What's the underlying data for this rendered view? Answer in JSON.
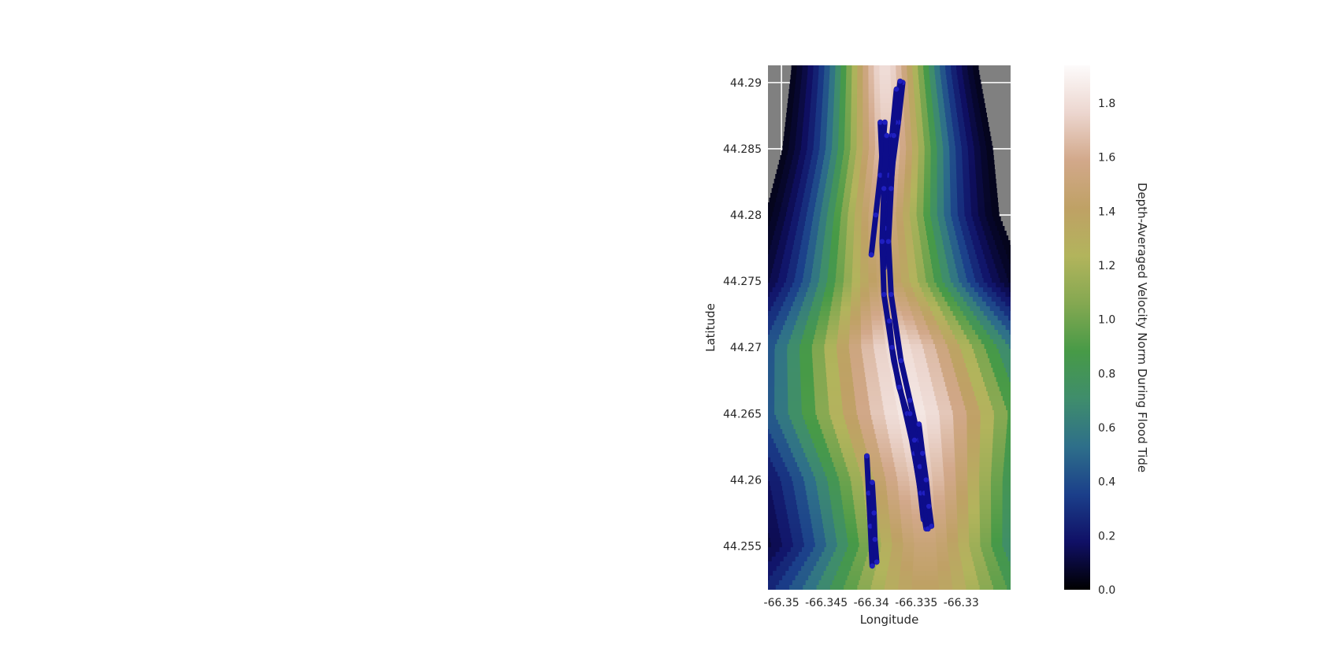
{
  "chart_data": {
    "type": "heatmap",
    "title": "",
    "xlabel": "Longitude",
    "ylabel": "Latitude",
    "xlim": [
      -66.3515,
      -66.3245
    ],
    "ylim": [
      44.2517,
      44.2913
    ],
    "x_ticks": [
      -66.35,
      -66.345,
      -66.34,
      -66.335,
      -66.33
    ],
    "x_tick_labels": [
      "-66.35",
      "-66.345",
      "-66.34",
      "-66.335",
      "-66.33"
    ],
    "y_ticks": [
      44.255,
      44.26,
      44.265,
      44.27,
      44.275,
      44.28,
      44.285,
      44.29
    ],
    "y_tick_labels": [
      "44.255",
      "44.26",
      "44.265",
      "44.27",
      "44.275",
      "44.28",
      "44.285",
      "44.29"
    ],
    "grid": true,
    "background_color": "#808080",
    "grid_color": "#ffffff",
    "colormap": "gist_earth",
    "colorbar": {
      "label": "Depth-Averaged Velocity Norm During Flood Tide",
      "vmin": 0.0,
      "vmax": 1.94,
      "ticks": [
        0.0,
        0.2,
        0.4,
        0.6,
        0.8,
        1.0,
        1.2,
        1.4,
        1.6,
        1.8
      ],
      "tick_labels": [
        "0.0",
        "0.2",
        "0.4",
        "0.6",
        "0.8",
        "1.0",
        "1.2",
        "1.4",
        "1.6",
        "1.8"
      ],
      "stops": [
        "#000000",
        "#101066",
        "#1b3f8a",
        "#2e6f8a",
        "#3f8d6c",
        "#479a47",
        "#84a851",
        "#b2b45c",
        "#bfa165",
        "#d2a88a",
        "#ecd6cf",
        "#fdfbfb"
      ]
    },
    "flow_field": {
      "description_free": true,
      "channel_x": [
        -66.3385,
        -66.3382,
        -66.3388,
        -66.3385,
        -66.337,
        -66.3355,
        -66.3345,
        -66.334,
        -66.334
      ],
      "channel_y": [
        44.291,
        44.285,
        44.28,
        44.275,
        44.27,
        44.265,
        44.26,
        44.255,
        44.2517
      ],
      "channel_half_width_deg": [
        0.004,
        0.0045,
        0.005,
        0.006,
        0.009,
        0.01,
        0.0085,
        0.008,
        0.01
      ],
      "core_velocity": [
        1.8,
        1.7,
        1.55,
        1.45,
        1.8,
        1.85,
        1.7,
        1.5,
        1.4
      ]
    },
    "series": [
      {
        "type": "transect",
        "color": "#0d0d8a",
        "tracks": [
          {
            "x": [
              -66.3365,
              -66.337,
              -66.3376,
              -66.3381,
              -66.3383
            ],
            "y": [
              44.29,
              44.287,
              44.284,
              44.28,
              44.277
            ]
          },
          {
            "x": [
              -66.3368,
              -66.3373,
              -66.3378,
              -66.3383,
              -66.3386
            ],
            "y": [
              44.2901,
              44.287,
              44.284,
              44.28,
              44.276
            ]
          },
          {
            "x": [
              -66.3372,
              -66.3377,
              -66.3381,
              -66.3385
            ],
            "y": [
              44.2895,
              44.286,
              44.283,
              44.279
            ]
          },
          {
            "x": [
              -66.339,
              -66.3388,
              -66.3386,
              -66.3385
            ],
            "y": [
              44.287,
              44.284,
              44.281,
              44.279
            ]
          },
          {
            "x": [
              -66.3385,
              -66.339,
              -66.3395,
              -66.34
            ],
            "y": [
              44.287,
              44.283,
              44.28,
              44.277
            ]
          },
          {
            "x": [
              -66.3383,
              -66.3386,
              -66.3388,
              -66.3386,
              -66.3375,
              -66.3365,
              -66.3355,
              -66.3347,
              -66.3342
            ],
            "y": [
              44.286,
              44.282,
              44.278,
              44.274,
              44.269,
              44.266,
              44.263,
              44.26,
              44.257
            ]
          },
          {
            "x": [
              -66.3375,
              -66.3378,
              -66.3381,
              -66.3378,
              -66.3367,
              -66.3357,
              -66.3347,
              -66.334,
              -66.3336
            ],
            "y": [
              44.286,
              44.282,
              44.278,
              44.274,
              44.269,
              44.266,
              44.263,
              44.26,
              44.257
            ]
          },
          {
            "x": [
              -66.338,
              -66.3377,
              -66.3369,
              -66.336,
              -66.3352,
              -66.3345,
              -66.3339
            ],
            "y": [
              44.272,
              44.27,
              44.267,
              44.265,
              44.262,
              44.259,
              44.2563
            ]
          },
          {
            "x": [
              -66.3357,
              -66.3352,
              -66.3346,
              -66.3341,
              -66.3337
            ],
            "y": [
              44.265,
              44.263,
              44.261,
              44.259,
              44.2563
            ]
          },
          {
            "x": [
              -66.3347,
              -66.3343,
              -66.3339,
              -66.3336,
              -66.3333
            ],
            "y": [
              44.2642,
              44.262,
              44.26,
              44.258,
              44.2565
            ]
          },
          {
            "x": [
              -66.3405,
              -66.3403,
              -66.3401,
              -66.3399
            ],
            "y": [
              44.2618,
              44.259,
              44.2565,
              44.2535
            ]
          },
          {
            "x": [
              -66.3399,
              -66.3397,
              -66.3396,
              -66.3394
            ],
            "y": [
              44.2598,
              44.2575,
              44.2555,
              44.2538
            ]
          }
        ]
      }
    ]
  }
}
